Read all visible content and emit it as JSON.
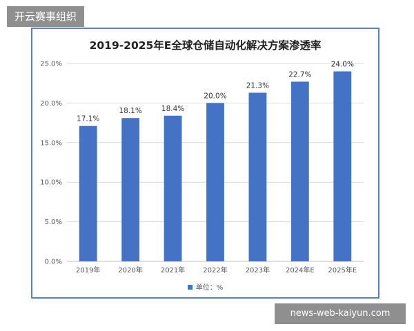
{
  "corner_tag": "开云赛事组织",
  "source_tag": "news-web-kaiyun.com",
  "colors": {
    "bar": "#4472c4",
    "frame": "#5b7ec9",
    "grid": "#d9d9d9",
    "tags": "#8f8f8f"
  },
  "chart_data": {
    "type": "bar",
    "title": "2019-2025年E全球仓储自动化解决方案渗透率",
    "categories": [
      "2019年",
      "2020年",
      "2021年",
      "2022年",
      "2023年",
      "2024年E",
      "2025年E"
    ],
    "values": [
      17.1,
      18.1,
      18.4,
      20.0,
      21.3,
      22.7,
      24.0
    ],
    "data_labels": [
      "17.1%",
      "18.1%",
      "18.4%",
      "20.0%",
      "21.3%",
      "22.7%",
      "24.0%"
    ],
    "yticks": [
      0,
      5,
      10,
      15,
      20,
      25
    ],
    "ytick_labels": [
      "0.0%",
      "5.0%",
      "10.0%",
      "15.0%",
      "20.0%",
      "25.0%"
    ],
    "ylim": [
      0,
      25
    ],
    "grid": true,
    "legend": {
      "label": "单位：%",
      "placement": "bottom"
    }
  }
}
